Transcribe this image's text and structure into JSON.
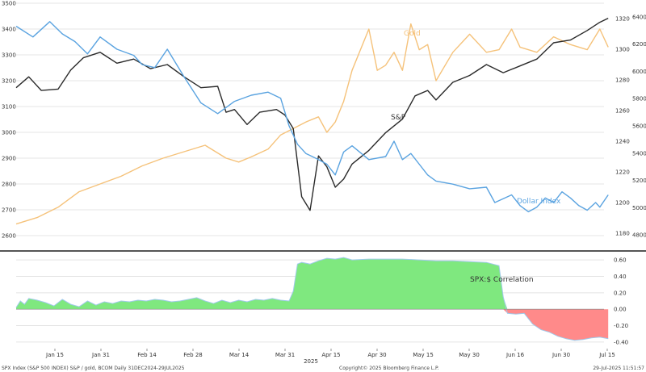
{
  "chart_data": [
    {
      "type": "line",
      "title": "",
      "x_labels": [
        "Jan 15",
        "Jan 31",
        "Feb 14",
        "Feb 28",
        "Mar 14",
        "Mar 31",
        "Apr 15",
        "Apr 30",
        "May 15",
        "May 30",
        "Jun 16",
        "Jun 30",
        "Jul 15"
      ],
      "x_sublabel": "2025",
      "x_count": 141,
      "left_axis": {
        "ticks": [
          "3500",
          "3400",
          "3300",
          "3200",
          "3100",
          "3000",
          "2900",
          "2800",
          "2700",
          "2600"
        ],
        "range": [
          2550,
          3500
        ]
      },
      "right_axis_outer": {
        "ticks": [
          "6400",
          "6200",
          "6000",
          "5800",
          "5600",
          "5400",
          "5200",
          "5000",
          "4800"
        ],
        "range": [
          4700,
          6500
        ]
      },
      "right_axis_inner": {
        "ticks": [
          "1320",
          "1300",
          "1280",
          "1260",
          "1240",
          "1220",
          "1200",
          "1180"
        ],
        "range": [
          1170,
          1330
        ]
      },
      "series": [
        {
          "name": "Gold",
          "axis": "left",
          "color": "#f5c27a",
          "points": [
            [
              0,
              2645
            ],
            [
              5,
              2670
            ],
            [
              10,
              2710
            ],
            [
              15,
              2770
            ],
            [
              20,
              2800
            ],
            [
              25,
              2830
            ],
            [
              30,
              2870
            ],
            [
              35,
              2900
            ],
            [
              40,
              2925
            ],
            [
              45,
              2950
            ],
            [
              50,
              2900
            ],
            [
              53,
              2885
            ],
            [
              56,
              2905
            ],
            [
              60,
              2935
            ],
            [
              63,
              2990
            ],
            [
              66,
              3015
            ],
            [
              69,
              3040
            ],
            [
              72,
              3060
            ],
            [
              74,
              3000
            ],
            [
              76,
              3040
            ],
            [
              78,
              3120
            ],
            [
              80,
              3240
            ],
            [
              82,
              3320
            ],
            [
              84,
              3400
            ],
            [
              86,
              3240
            ],
            [
              88,
              3260
            ],
            [
              90,
              3310
            ],
            [
              92,
              3240
            ],
            [
              94,
              3420
            ],
            [
              96,
              3320
            ],
            [
              98,
              3340
            ],
            [
              100,
              3200
            ],
            [
              104,
              3310
            ],
            [
              108,
              3380
            ],
            [
              112,
              3310
            ],
            [
              115,
              3320
            ],
            [
              118,
              3400
            ],
            [
              120,
              3330
            ],
            [
              124,
              3310
            ],
            [
              128,
              3370
            ],
            [
              132,
              3340
            ],
            [
              136,
              3320
            ],
            [
              139,
              3400
            ],
            [
              141,
              3330
            ]
          ]
        },
        {
          "name": "S&P",
          "axis": "right_outer",
          "color": "#2a2a2a",
          "points": [
            [
              0,
              5880
            ],
            [
              3,
              5960
            ],
            [
              6,
              5860
            ],
            [
              10,
              5870
            ],
            [
              13,
              6010
            ],
            [
              16,
              6100
            ],
            [
              20,
              6140
            ],
            [
              24,
              6060
            ],
            [
              28,
              6090
            ],
            [
              32,
              6020
            ],
            [
              36,
              6050
            ],
            [
              40,
              5960
            ],
            [
              44,
              5880
            ],
            [
              48,
              5890
            ],
            [
              50,
              5700
            ],
            [
              52,
              5720
            ],
            [
              55,
              5610
            ],
            [
              58,
              5700
            ],
            [
              62,
              5720
            ],
            [
              64,
              5680
            ],
            [
              66,
              5580
            ],
            [
              68,
              5080
            ],
            [
              70,
              4980
            ],
            [
              72,
              5380
            ],
            [
              74,
              5300
            ],
            [
              76,
              5150
            ],
            [
              78,
              5210
            ],
            [
              80,
              5320
            ],
            [
              84,
              5420
            ],
            [
              88,
              5550
            ],
            [
              92,
              5650
            ],
            [
              95,
              5820
            ],
            [
              98,
              5860
            ],
            [
              100,
              5790
            ],
            [
              104,
              5920
            ],
            [
              108,
              5970
            ],
            [
              112,
              6050
            ],
            [
              116,
              5990
            ],
            [
              120,
              6040
            ],
            [
              124,
              6090
            ],
            [
              128,
              6210
            ],
            [
              132,
              6230
            ],
            [
              136,
              6300
            ],
            [
              139,
              6360
            ],
            [
              141,
              6390
            ]
          ]
        },
        {
          "name": "Dollar Index",
          "axis": "right_inner",
          "color": "#5aa3e0",
          "points": [
            [
              0,
              1315
            ],
            [
              4,
              1308
            ],
            [
              8,
              1318
            ],
            [
              11,
              1310
            ],
            [
              14,
              1305
            ],
            [
              17,
              1297
            ],
            [
              20,
              1308
            ],
            [
              24,
              1300
            ],
            [
              28,
              1296
            ],
            [
              30,
              1290
            ],
            [
              33,
              1288
            ],
            [
              36,
              1300
            ],
            [
              40,
              1282
            ],
            [
              44,
              1265
            ],
            [
              48,
              1258
            ],
            [
              52,
              1266
            ],
            [
              56,
              1270
            ],
            [
              60,
              1272
            ],
            [
              63,
              1268
            ],
            [
              65,
              1250
            ],
            [
              67,
              1238
            ],
            [
              69,
              1232
            ],
            [
              72,
              1228
            ],
            [
              74,
              1225
            ],
            [
              76,
              1218
            ],
            [
              78,
              1233
            ],
            [
              80,
              1237
            ],
            [
              84,
              1228
            ],
            [
              88,
              1230
            ],
            [
              90,
              1240
            ],
            [
              92,
              1228
            ],
            [
              94,
              1232
            ],
            [
              96,
              1225
            ],
            [
              98,
              1218
            ],
            [
              100,
              1214
            ],
            [
              104,
              1212
            ],
            [
              108,
              1209
            ],
            [
              112,
              1210
            ],
            [
              114,
              1200
            ],
            [
              118,
              1205
            ],
            [
              120,
              1198
            ],
            [
              122,
              1194
            ],
            [
              124,
              1197
            ],
            [
              126,
              1203
            ],
            [
              128,
              1200
            ],
            [
              130,
              1207
            ],
            [
              132,
              1203
            ],
            [
              134,
              1198
            ],
            [
              136,
              1195
            ],
            [
              138,
              1200
            ],
            [
              139,
              1197
            ],
            [
              141,
              1205
            ]
          ]
        }
      ],
      "annotations": [
        "Gold",
        "S&P",
        "Dollar Index"
      ]
    },
    {
      "type": "area",
      "title": "SPX:$ Correlation",
      "y_axis": {
        "ticks": [
          "0.60",
          "0.40",
          "0.20",
          "0.00",
          "-0.20",
          "-0.40"
        ],
        "range": [
          -0.48,
          0.68
        ]
      },
      "positive_color": "#7fe87f",
      "negative_color": "#ff8a8a",
      "series": [
        {
          "name": "SPX:$ Correlation",
          "points": [
            [
              0,
              0.02
            ],
            [
              1,
              0.1
            ],
            [
              2,
              0.06
            ],
            [
              3,
              0.13
            ],
            [
              5,
              0.11
            ],
            [
              7,
              0.08
            ],
            [
              9,
              0.04
            ],
            [
              11,
              0.12
            ],
            [
              13,
              0.06
            ],
            [
              15,
              0.03
            ],
            [
              17,
              0.1
            ],
            [
              19,
              0.05
            ],
            [
              21,
              0.09
            ],
            [
              23,
              0.07
            ],
            [
              25,
              0.1
            ],
            [
              27,
              0.09
            ],
            [
              29,
              0.11
            ],
            [
              31,
              0.1
            ],
            [
              33,
              0.12
            ],
            [
              35,
              0.11
            ],
            [
              37,
              0.09
            ],
            [
              39,
              0.1
            ],
            [
              41,
              0.12
            ],
            [
              43,
              0.14
            ],
            [
              45,
              0.1
            ],
            [
              47,
              0.07
            ],
            [
              49,
              0.11
            ],
            [
              51,
              0.08
            ],
            [
              53,
              0.11
            ],
            [
              55,
              0.09
            ],
            [
              57,
              0.12
            ],
            [
              59,
              0.11
            ],
            [
              61,
              0.13
            ],
            [
              63,
              0.11
            ],
            [
              65,
              0.1
            ],
            [
              66,
              0.22
            ],
            [
              67,
              0.55
            ],
            [
              68,
              0.57
            ],
            [
              70,
              0.55
            ],
            [
              72,
              0.59
            ],
            [
              74,
              0.62
            ],
            [
              76,
              0.61
            ],
            [
              78,
              0.63
            ],
            [
              80,
              0.6
            ],
            [
              84,
              0.61
            ],
            [
              88,
              0.61
            ],
            [
              92,
              0.61
            ],
            [
              96,
              0.6
            ],
            [
              100,
              0.59
            ],
            [
              104,
              0.59
            ],
            [
              108,
              0.58
            ],
            [
              112,
              0.57
            ],
            [
              115,
              0.53
            ],
            [
              116,
              0.15
            ],
            [
              117,
              -0.05
            ],
            [
              119,
              -0.06
            ],
            [
              121,
              -0.05
            ],
            [
              123,
              -0.18
            ],
            [
              125,
              -0.25
            ],
            [
              127,
              -0.28
            ],
            [
              129,
              -0.33
            ],
            [
              131,
              -0.36
            ],
            [
              133,
              -0.38
            ],
            [
              135,
              -0.37
            ],
            [
              137,
              -0.35
            ],
            [
              139,
              -0.34
            ],
            [
              141,
              -0.36
            ]
          ]
        }
      ],
      "annotations": [
        "SPX:$ Correlation"
      ]
    }
  ],
  "footer": {
    "left": "SPX Index (S&P 500 INDEX) S&P / gold, BCOM  Daily 31DEC2024-29JUL2025",
    "center": "Copyright© 2025 Bloomberg Finance L.P.",
    "right": "29-Jul-2025 11:51:57"
  }
}
